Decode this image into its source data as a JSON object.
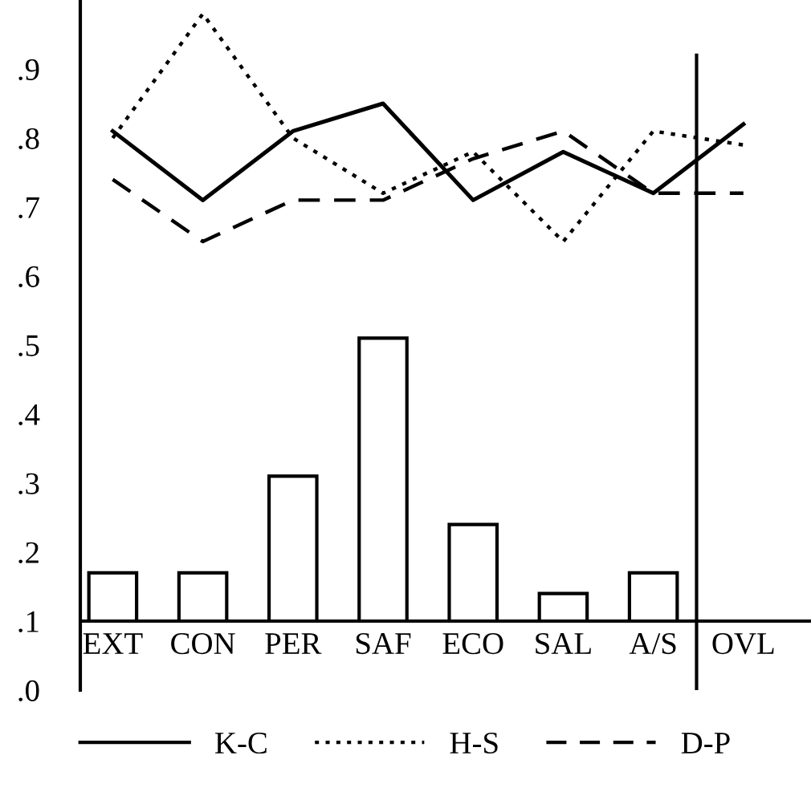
{
  "chart_data": {
    "type": "bar",
    "categories": [
      "EXT",
      "CON",
      "PER",
      "SAF",
      "ECO",
      "SAL",
      "A/S",
      "OVL"
    ],
    "base": [
      0.1,
      0.1,
      0.1,
      0.1,
      0.1,
      0.1,
      0.1,
      null
    ],
    "values": [
      0.07,
      0.07,
      0.21,
      0.41,
      0.14,
      0.04,
      0.07,
      null
    ],
    "color": "#ffffff",
    "series": [
      {
        "name": "K-C",
        "type": "line",
        "line_style": "solid",
        "color": "#000000",
        "values": [
          0.81,
          0.71,
          0.81,
          0.85,
          0.71,
          0.78,
          0.72,
          0.82
        ]
      },
      {
        "name": "H-S",
        "type": "line",
        "line_style": "dotted",
        "color": "#000000",
        "values": [
          0.8,
          0.98,
          0.8,
          0.72,
          0.78,
          0.65,
          0.81,
          0.79
        ]
      },
      {
        "name": "D-P",
        "type": "line",
        "line_style": "dashed",
        "color": "#000000",
        "values": [
          0.74,
          0.65,
          0.71,
          0.71,
          0.77,
          0.81,
          0.72,
          0.72
        ]
      }
    ],
    "ylim": [
      0,
      1.0
    ],
    "yticks": [
      {
        "value": 0,
        "label": ".0"
      },
      {
        "value": 0.1,
        "label": ".1"
      },
      {
        "value": 0.2,
        "label": ".2"
      },
      {
        "value": 0.3,
        "label": ".3"
      },
      {
        "value": 0.4,
        "label": ".4"
      },
      {
        "value": 0.5,
        "label": ".5"
      },
      {
        "value": 0.6,
        "label": ".6"
      },
      {
        "value": 0.7,
        "label": ".7"
      },
      {
        "value": 0.8,
        "label": ".8"
      },
      {
        "value": 0.9,
        "label": ".9"
      }
    ],
    "legend": "bottom",
    "grid": false
  }
}
